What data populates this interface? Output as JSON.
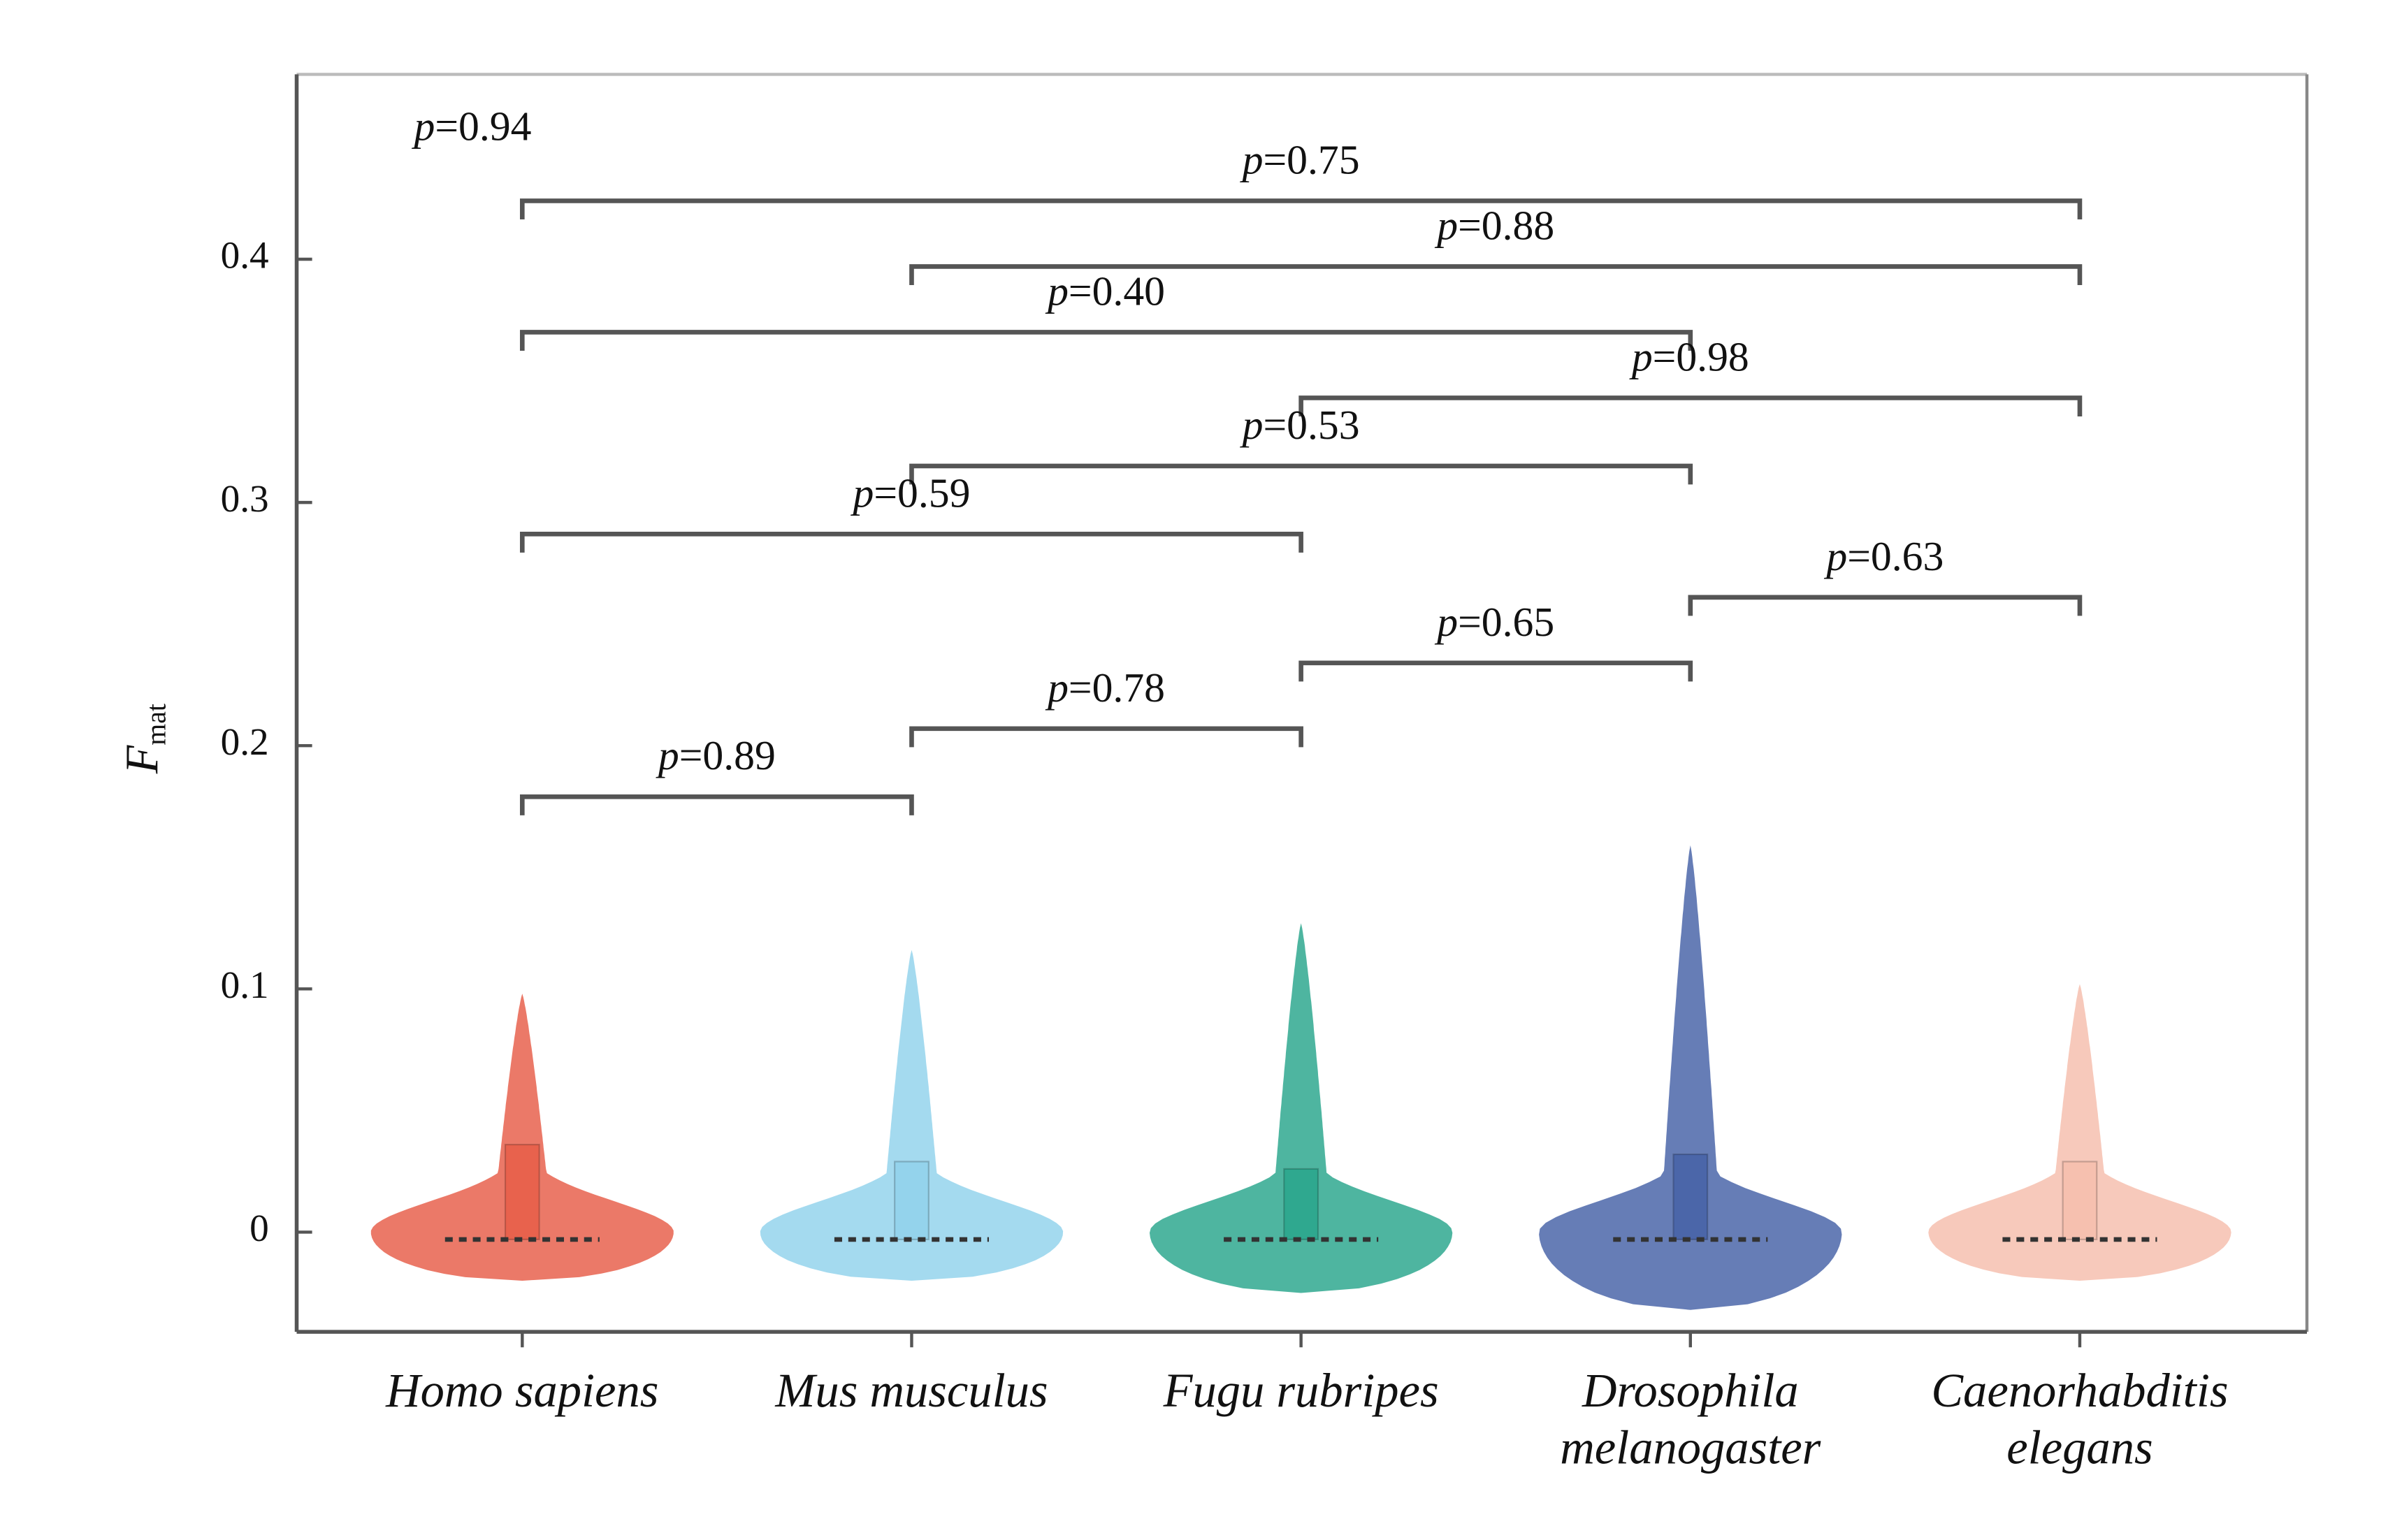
{
  "chart_data": {
    "type": "violin",
    "y_label": "F",
    "y_label_sub": "mat",
    "categories": [
      "Homo sapiens",
      "Mus musculus",
      "Fugu rubripes",
      "Drosophila\nmelanogaster",
      "Caenorhabditis\nelegans"
    ],
    "colors": [
      "#e8624d",
      "#94d3ec",
      "#2fa88f",
      "#4b66a9",
      "#f6c0af"
    ],
    "min": [
      -0.02,
      -0.02,
      -0.025,
      -0.032,
      -0.02
    ],
    "max": [
      0.098,
      0.116,
      0.127,
      0.159,
      0.102
    ],
    "q1": [
      -0.003,
      -0.003,
      -0.003,
      -0.003,
      -0.003
    ],
    "q3": [
      0.036,
      0.029,
      0.026,
      0.032,
      0.029
    ],
    "ylim": [
      -0.041,
      0.476
    ],
    "yticks": [
      0,
      0.1,
      0.2,
      0.3,
      0.4
    ],
    "annotation": "p=0.94",
    "annotation_y": 0.453,
    "comparisons": [
      {
        "label": "p=0.75",
        "from": "Homo sapiens",
        "to": "Caenorhabditis\nelegans",
        "y": 0.424
      },
      {
        "label": "p=0.88",
        "from": "Mus musculus",
        "to": "Caenorhabditis\nelegans",
        "y": 0.397
      },
      {
        "label": "p=0.40",
        "from": "Homo sapiens",
        "to": "Drosophila\nmelanogaster",
        "y": 0.37
      },
      {
        "label": "p=0.98",
        "from": "Fugu rubripes",
        "to": "Caenorhabditis\nelegans",
        "y": 0.343
      },
      {
        "label": "p=0.53",
        "from": "Mus musculus",
        "to": "Drosophila\nmelanogaster",
        "y": 0.315
      },
      {
        "label": "p=0.59",
        "from": "Homo sapiens",
        "to": "Fugu rubripes",
        "y": 0.287
      },
      {
        "label": "p=0.63",
        "from": "Drosophila\nmelanogaster",
        "to": "Caenorhabditis\nelegans",
        "y": 0.261
      },
      {
        "label": "p=0.65",
        "from": "Fugu rubripes",
        "to": "Drosophila\nmelanogaster",
        "y": 0.234
      },
      {
        "label": "p=0.78",
        "from": "Mus musculus",
        "to": "Fugu rubripes",
        "y": 0.207
      },
      {
        "label": "p=0.89",
        "from": "Homo sapiens",
        "to": "Mus musculus",
        "y": 0.179
      }
    ]
  }
}
